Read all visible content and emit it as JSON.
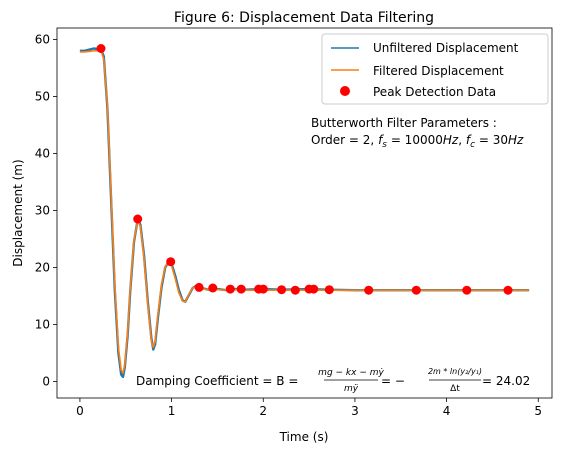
{
  "chart_data": {
    "type": "line",
    "title": "Figure 6: Displacement Data Filtering",
    "xlabel": "Time (s)",
    "ylabel": "Displacement (m)",
    "xlim": [
      -0.25,
      5.15
    ],
    "ylim": [
      -2.9,
      62.0
    ],
    "x_ticks": [
      0,
      1,
      2,
      3,
      4,
      5
    ],
    "y_ticks": [
      0,
      10,
      20,
      30,
      40,
      50,
      60
    ],
    "x_tick_labels": [
      "0",
      "1",
      "2",
      "3",
      "4",
      "5"
    ],
    "y_tick_labels": [
      "0",
      "10",
      "20",
      "30",
      "40",
      "50",
      "60"
    ],
    "grid": false,
    "legend_position": "top-right",
    "series": [
      {
        "name": "Unfiltered Displacement",
        "kind": "line",
        "color": "#1f77b4",
        "x": [
          0.0,
          0.05,
          0.1,
          0.15,
          0.2,
          0.23,
          0.26,
          0.3,
          0.34,
          0.38,
          0.42,
          0.45,
          0.47,
          0.49,
          0.52,
          0.55,
          0.59,
          0.63,
          0.66,
          0.7,
          0.74,
          0.78,
          0.8,
          0.82,
          0.85,
          0.89,
          0.93,
          0.97,
          1.0,
          1.04,
          1.08,
          1.12,
          1.15,
          1.19,
          1.23,
          1.27,
          1.3,
          1.35,
          1.4,
          1.5,
          1.6,
          1.7,
          1.8,
          2.0,
          2.2,
          2.5,
          2.7,
          3.0,
          3.5,
          4.0,
          4.5,
          4.9
        ],
        "y": [
          58.0,
          58.0,
          58.2,
          58.4,
          58.3,
          58.3,
          57.0,
          48.0,
          32.0,
          16.0,
          5.0,
          1.2,
          0.8,
          2.5,
          8.0,
          16.0,
          24.5,
          28.4,
          27.5,
          22.0,
          14.0,
          7.5,
          5.6,
          6.5,
          11.0,
          16.5,
          20.0,
          21.0,
          20.6,
          18.5,
          16.0,
          14.2,
          14.0,
          15.2,
          16.4,
          16.8,
          16.5,
          16.3,
          16.1,
          16.2,
          16.0,
          16.2,
          16.1,
          16.2,
          16.1,
          16.2,
          16.1,
          16.0,
          16.0,
          16.0,
          16.0,
          16.0
        ]
      },
      {
        "name": "Filtered Displacement",
        "kind": "line",
        "color": "#ff7f0e",
        "x": [
          0.0,
          0.05,
          0.1,
          0.15,
          0.2,
          0.23,
          0.26,
          0.3,
          0.34,
          0.38,
          0.42,
          0.45,
          0.47,
          0.49,
          0.52,
          0.55,
          0.59,
          0.63,
          0.66,
          0.7,
          0.74,
          0.78,
          0.8,
          0.82,
          0.85,
          0.89,
          0.93,
          0.97,
          1.0,
          1.04,
          1.08,
          1.12,
          1.15,
          1.19,
          1.23,
          1.27,
          1.3,
          1.35,
          1.4,
          1.5,
          1.6,
          1.7,
          1.8,
          2.0,
          2.2,
          2.5,
          2.7,
          3.0,
          3.5,
          4.0,
          4.5,
          4.9
        ],
        "y": [
          57.8,
          57.8,
          57.9,
          58.0,
          58.0,
          58.0,
          56.5,
          48.5,
          33.0,
          17.0,
          6.0,
          2.0,
          1.5,
          3.0,
          8.5,
          16.5,
          24.8,
          28.2,
          27.2,
          21.5,
          13.5,
          7.0,
          6.0,
          7.0,
          11.5,
          17.0,
          20.2,
          20.8,
          20.3,
          18.0,
          15.5,
          14.1,
          14.0,
          15.3,
          16.4,
          16.6,
          16.4,
          16.2,
          16.1,
          16.1,
          16.0,
          16.1,
          16.0,
          16.0,
          16.0,
          16.0,
          16.0,
          16.0,
          16.0,
          16.0,
          16.0,
          16.0
        ]
      },
      {
        "name": "Peak Detection Data",
        "kind": "scatter",
        "color": "#ff0000",
        "x": [
          0.23,
          0.63,
          0.99,
          1.3,
          1.45,
          1.64,
          1.76,
          1.95,
          2.0,
          2.2,
          2.35,
          2.5,
          2.55,
          2.72,
          3.15,
          3.67,
          4.22,
          4.67
        ],
        "y": [
          58.4,
          28.5,
          21.0,
          16.5,
          16.4,
          16.2,
          16.2,
          16.2,
          16.2,
          16.1,
          16.0,
          16.2,
          16.2,
          16.1,
          16.0,
          16.0,
          16.0,
          16.0
        ]
      }
    ],
    "annotations": {
      "filter_title": "Butterworth Filter Parameters :",
      "filter_params_prefix": "Order = 2, ",
      "fs_symbol": "f",
      "fs_sub": "s",
      "fs_value": " = 10000",
      "fc_symbol": "f",
      "fc_sub": "c",
      "fc_value": " = 30",
      "unit": "Hz",
      "damping_prefix": "Damping Coefficient = B = ",
      "damping_frac1_num": "mg − kx − mẏ",
      "damping_frac1_den": "mÿ",
      "damping_mid": " = −",
      "damping_frac2_num": "2m * ln(y₂/y₁)",
      "damping_frac2_den": "Δt",
      "damping_result": " = 24.02"
    }
  }
}
